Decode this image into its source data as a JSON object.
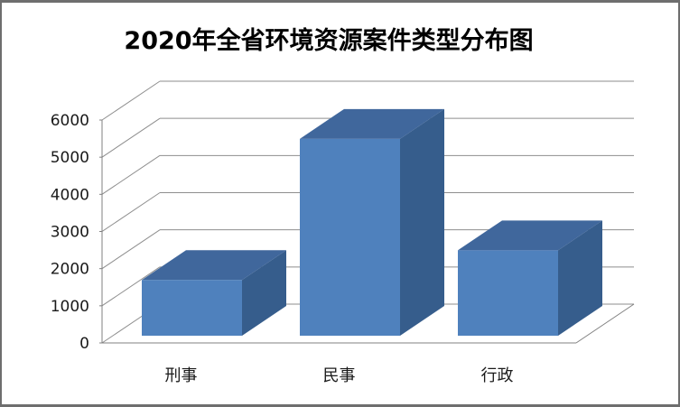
{
  "window": {
    "background": "#ffffff",
    "border_color": "#6e6e6e"
  },
  "chart_data": {
    "type": "bar",
    "variant": "3d-column",
    "title": "2020年全省环境资源案件类型分布图",
    "categories": [
      "刑事",
      "民事",
      "行政"
    ],
    "values": [
      1500,
      5300,
      2300
    ],
    "xlabel": "",
    "ylabel": "",
    "ylim": [
      0,
      6000
    ],
    "ytick_step": 1000,
    "ytick_labels": [
      "0",
      "1000",
      "2000",
      "3000",
      "4000",
      "5000",
      "6000"
    ],
    "grid": true,
    "legend": "none",
    "colors": {
      "bar_front": "#4f81bd",
      "bar_top": "#40679c",
      "bar_side": "#365d8c",
      "gridline": "#8e8e8e",
      "axis_line": "#808080",
      "label_text": "#1a1a1a",
      "title_text": "#000000"
    }
  }
}
